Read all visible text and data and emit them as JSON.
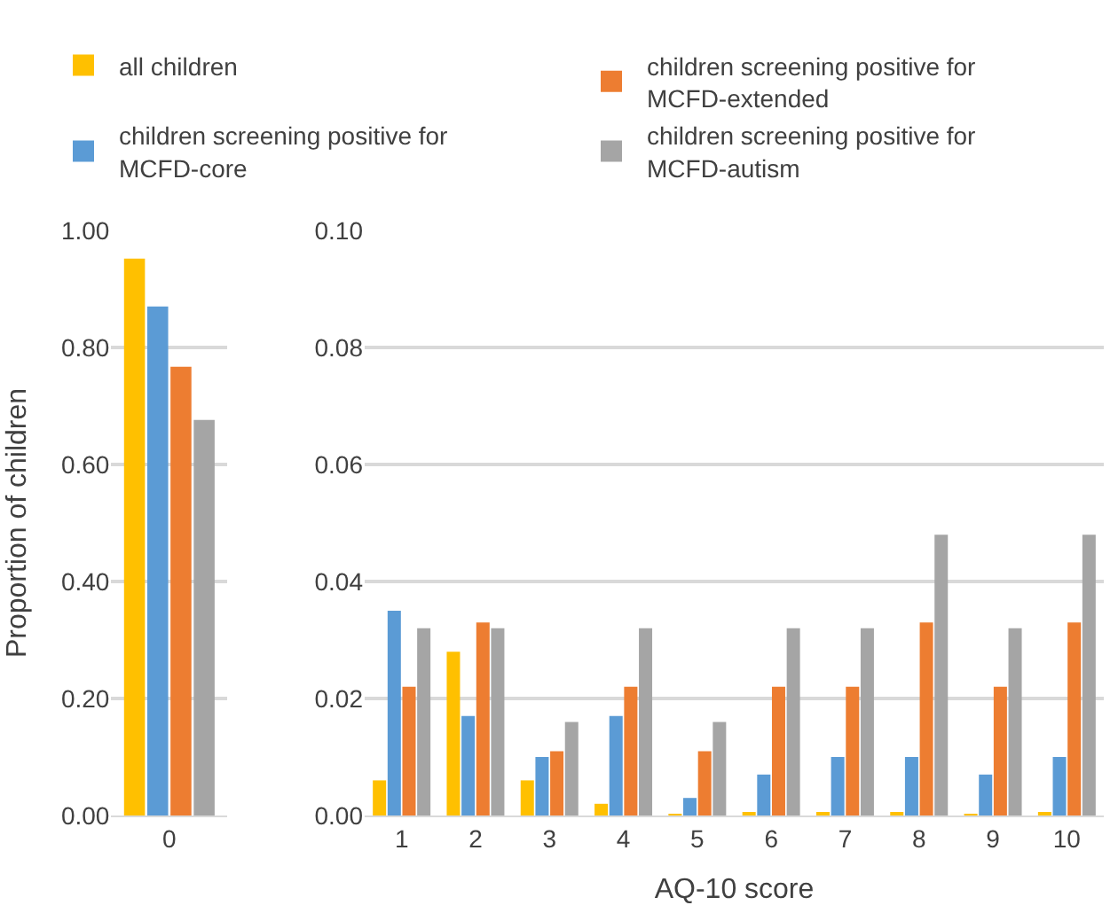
{
  "chart_data": [
    {
      "type": "bar",
      "categories": [
        "0"
      ],
      "ylabel": "Proportion of children",
      "ylim": [
        0,
        1
      ],
      "yticks": [
        {
          "value": 0,
          "label": "0.00"
        },
        {
          "value": 0.2,
          "label": "0.20"
        },
        {
          "value": 0.4,
          "label": "0.40"
        },
        {
          "value": 0.6,
          "label": "0.60"
        },
        {
          "value": 0.8,
          "label": "0.80"
        },
        {
          "value": 1,
          "label": "1.00"
        }
      ],
      "grid": "y",
      "legend": "top",
      "series": [
        {
          "name": "all children",
          "color": "#ffc000",
          "values": [
            0.952
          ]
        },
        {
          "name": "children screening positive for\nMCFD-core",
          "color": "#5b9bd5",
          "values": [
            0.87
          ]
        },
        {
          "name": "children screening positive for\nMCFD-extended",
          "color": "#ed7d31",
          "values": [
            0.767
          ]
        },
        {
          "name": "children screening positive for\nMCFD-autism",
          "color": "#a5a5a5",
          "values": [
            0.676
          ]
        }
      ]
    },
    {
      "type": "bar",
      "categories": [
        "1",
        "2",
        "3",
        "4",
        "5",
        "6",
        "7",
        "8",
        "9",
        "10"
      ],
      "xlabel": "AQ-10 score",
      "ylim": [
        0,
        0.1
      ],
      "yticks": [
        {
          "value": 0,
          "label": "0.00"
        },
        {
          "value": 0.02,
          "label": "0.02"
        },
        {
          "value": 0.04,
          "label": "0.04"
        },
        {
          "value": 0.06,
          "label": "0.06"
        },
        {
          "value": 0.08,
          "label": "0.08"
        },
        {
          "value": 0.1,
          "label": "0.10"
        }
      ],
      "grid": "y",
      "series": [
        {
          "color": "#ffc000",
          "values": [
            0.006,
            0.028,
            0.006,
            0.002,
            0.0003,
            0.0006,
            0.0006,
            0.0006,
            0.0003,
            0.0006
          ]
        },
        {
          "color": "#5b9bd5",
          "values": [
            0.035,
            0.017,
            0.01,
            0.017,
            0.003,
            0.007,
            0.01,
            0.01,
            0.007,
            0.01
          ]
        },
        {
          "color": "#ed7d31",
          "values": [
            0.022,
            0.033,
            0.011,
            0.022,
            0.011,
            0.022,
            0.022,
            0.033,
            0.022,
            0.033
          ]
        },
        {
          "color": "#a5a5a5",
          "values": [
            0.032,
            0.032,
            0.016,
            0.032,
            0.016,
            0.032,
            0.032,
            0.048,
            0.032,
            0.048
          ]
        }
      ]
    }
  ]
}
